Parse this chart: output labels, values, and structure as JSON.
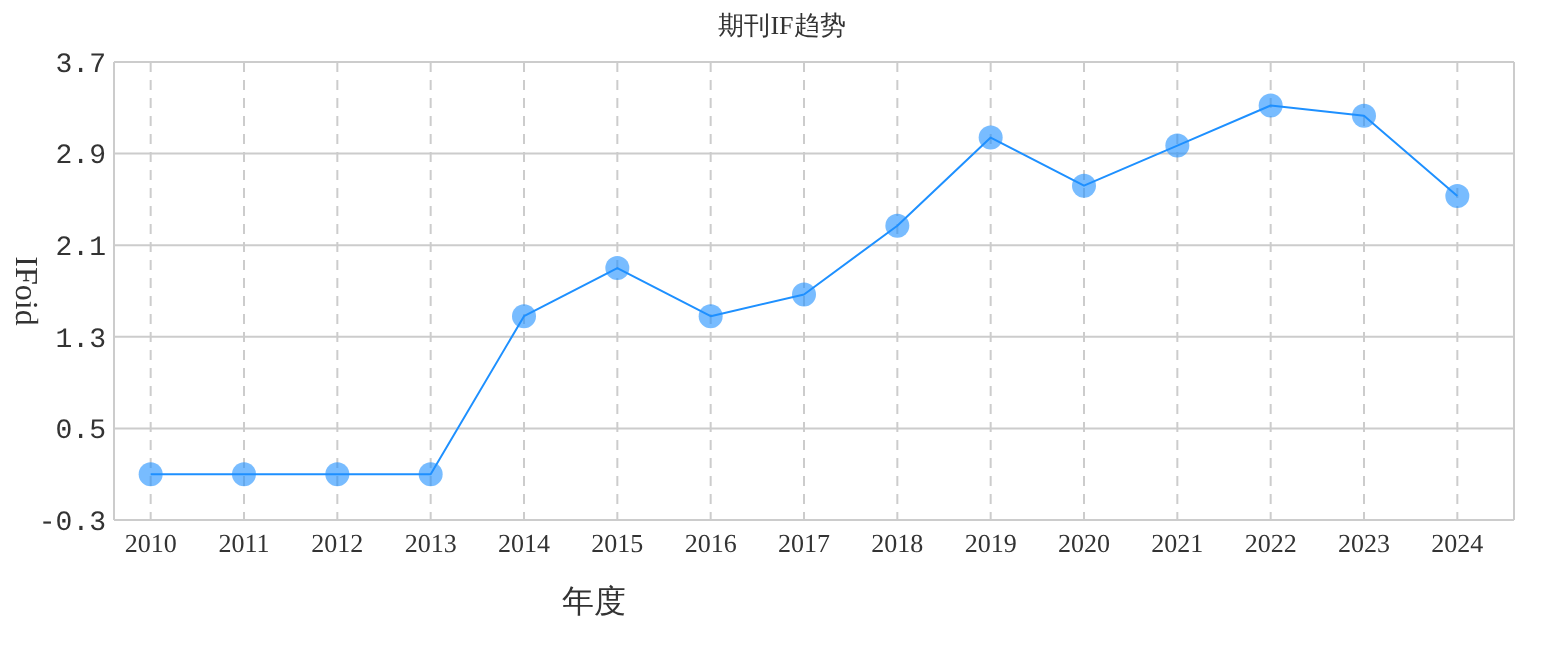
{
  "chart_data": {
    "type": "line",
    "title": "期刊IF趋势",
    "xlabel": "年度",
    "ylabel": "IFoid",
    "categories": [
      "2010",
      "2011",
      "2012",
      "2013",
      "2014",
      "2015",
      "2016",
      "2017",
      "2018",
      "2019",
      "2020",
      "2021",
      "2022",
      "2023",
      "2024"
    ],
    "series": [
      {
        "color": "#1e90ff",
        "values": [
          0.1,
          0.1,
          0.1,
          0.1,
          1.48,
          1.9,
          1.48,
          1.67,
          2.27,
          3.04,
          2.62,
          2.97,
          3.32,
          3.23,
          2.53
        ]
      }
    ],
    "ylim": [
      -0.3,
      3.7
    ],
    "yticks": [
      -0.3,
      0.5,
      1.3,
      2.1,
      2.9,
      3.7
    ],
    "grid": true,
    "marker": "circle",
    "line_style": "solid"
  }
}
